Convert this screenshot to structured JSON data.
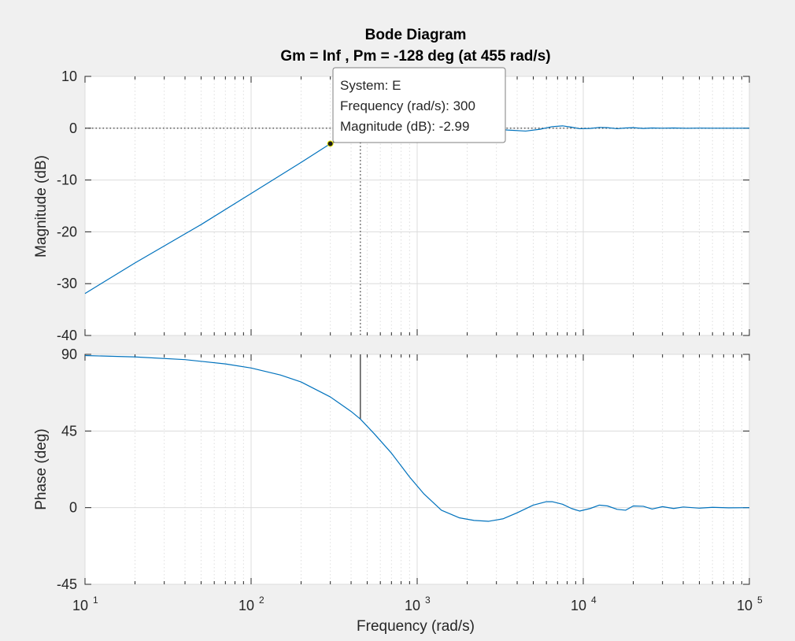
{
  "chart_data": {
    "type": "line",
    "title": "Bode Diagram",
    "subtitle": "Gm = Inf ,  Pm = -128 deg (at 455 rad/s)",
    "xlabel": "Frequency  (rad/s)",
    "xscale": "log",
    "xlim": [
      10,
      100000
    ],
    "x_ticks": [
      {
        "base": "10",
        "exp": "1",
        "value": 10
      },
      {
        "base": "10",
        "exp": "2",
        "value": 100
      },
      {
        "base": "10",
        "exp": "3",
        "value": 1000
      },
      {
        "base": "10",
        "exp": "4",
        "value": 10000
      },
      {
        "base": "10",
        "exp": "5",
        "value": 100000
      }
    ],
    "grid": true,
    "crossover_frequency": 455,
    "line_color": "#0072bd",
    "magnitude": {
      "ylabel": "Magnitude (dB)",
      "ylim": [
        -40,
        10
      ],
      "y_ticks": [
        "10",
        "0",
        "-10",
        "-20",
        "-30",
        "-40"
      ],
      "y_tick_values": [
        10,
        0,
        -10,
        -20,
        -30,
        -40
      ],
      "reference_level": 0,
      "series": [
        {
          "x": [
            10,
            20,
            50,
            100,
            200,
            300,
            400,
            455,
            600,
            800,
            1000,
            1300,
            1700,
            2200,
            2800,
            3500,
            4500,
            5500,
            6500,
            7500,
            8500,
            9500,
            11000,
            12500,
            14000,
            16000,
            18000,
            20000,
            23000,
            26000,
            30000,
            35000,
            42000,
            50000,
            60000,
            75000,
            100000
          ],
          "y": [
            -31.9,
            -26.0,
            -18.6,
            -12.6,
            -6.6,
            -2.99,
            -1.3,
            -0.8,
            -0.35,
            -0.15,
            0.0,
            0.15,
            0.25,
            0.15,
            -0.1,
            -0.35,
            -0.55,
            -0.2,
            0.3,
            0.45,
            0.2,
            -0.1,
            -0.05,
            0.15,
            0.1,
            -0.1,
            0.05,
            0.1,
            -0.05,
            0.05,
            0.0,
            0.05,
            -0.02,
            0.02,
            0.0,
            0.0,
            0.0
          ]
        }
      ]
    },
    "phase": {
      "ylabel": "Phase (deg)",
      "ylim": [
        -45,
        90
      ],
      "y_ticks": [
        "90",
        "45",
        "0",
        "-45"
      ],
      "y_tick_values": [
        90,
        45,
        0,
        -45
      ],
      "series": [
        {
          "x": [
            10,
            20,
            40,
            70,
            100,
            150,
            200,
            300,
            400,
            455,
            550,
            700,
            900,
            1100,
            1400,
            1800,
            2200,
            2700,
            3300,
            4000,
            5000,
            6000,
            6500,
            7500,
            8500,
            9500,
            11000,
            12500,
            14000,
            16000,
            18000,
            20000,
            23000,
            26000,
            30000,
            35000,
            40000,
            50000,
            60000,
            75000,
            100000
          ],
          "y": [
            89.3,
            88.5,
            86.9,
            84.4,
            82.0,
            77.9,
            73.8,
            65.0,
            56.5,
            52.0,
            43.5,
            32.0,
            18.0,
            8.0,
            -1.5,
            -6.0,
            -7.5,
            -8.0,
            -6.5,
            -3.0,
            1.5,
            3.5,
            3.5,
            2.0,
            -0.5,
            -2.0,
            -0.5,
            1.5,
            1.0,
            -1.0,
            -1.5,
            1.0,
            0.8,
            -0.8,
            0.6,
            -0.5,
            0.4,
            -0.3,
            0.2,
            -0.1,
            0.0
          ]
        }
      ]
    },
    "datatip": {
      "system_label": "System: E",
      "frequency_label": "Frequency (rad/s): 300",
      "magnitude_label": "Magnitude (dB): -2.99",
      "frequency": 300,
      "magnitude": -2.99
    }
  }
}
